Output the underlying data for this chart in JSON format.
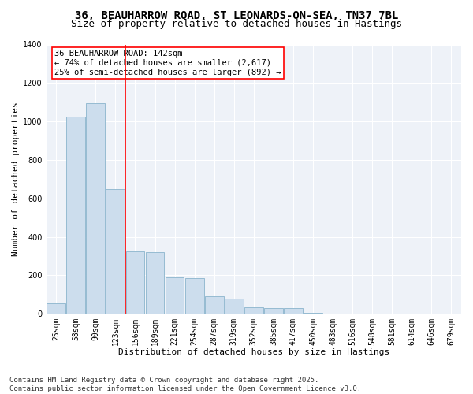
{
  "title_line1": "36, BEAUHARROW ROAD, ST LEONARDS-ON-SEA, TN37 7BL",
  "title_line2": "Size of property relative to detached houses in Hastings",
  "xlabel": "Distribution of detached houses by size in Hastings",
  "ylabel": "Number of detached properties",
  "bar_labels": [
    "25sqm",
    "58sqm",
    "90sqm",
    "123sqm",
    "156sqm",
    "189sqm",
    "221sqm",
    "254sqm",
    "287sqm",
    "319sqm",
    "352sqm",
    "385sqm",
    "417sqm",
    "450sqm",
    "483sqm",
    "516sqm",
    "548sqm",
    "581sqm",
    "614sqm",
    "646sqm",
    "679sqm"
  ],
  "bar_values": [
    55,
    1025,
    1095,
    650,
    325,
    320,
    190,
    185,
    90,
    80,
    35,
    30,
    30,
    5,
    0,
    0,
    0,
    0,
    0,
    0,
    0
  ],
  "bar_color": "#ccdded",
  "bar_edge_color": "#8ab4cc",
  "property_line_x": 3.5,
  "annotation_text": "36 BEAUHARROW ROAD: 142sqm\n← 74% of detached houses are smaller (2,617)\n25% of semi-detached houses are larger (892) →",
  "annotation_box_color": "white",
  "annotation_box_edge_color": "red",
  "line_color": "red",
  "ylim": [
    0,
    1400
  ],
  "yticks": [
    0,
    200,
    400,
    600,
    800,
    1000,
    1200,
    1400
  ],
  "background_color": "#eef2f8",
  "footer_text": "Contains HM Land Registry data © Crown copyright and database right 2025.\nContains public sector information licensed under the Open Government Licence v3.0.",
  "title_fontsize": 10,
  "subtitle_fontsize": 9,
  "axis_label_fontsize": 8,
  "tick_fontsize": 7,
  "annotation_fontsize": 7.5,
  "footer_fontsize": 6.5
}
